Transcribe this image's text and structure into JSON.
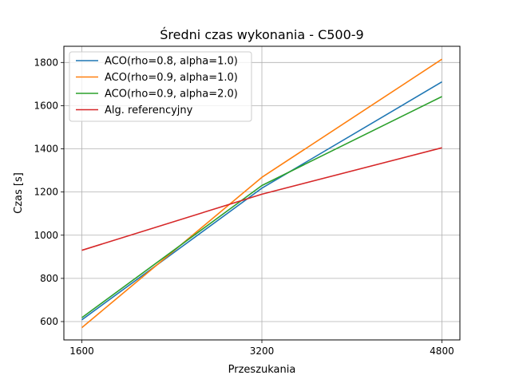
{
  "chart_data": {
    "type": "line",
    "title": "Średni czas wykonania - C500-9",
    "xlabel": "Przeszukania",
    "ylabel": "Czas [s]",
    "x": [
      1600,
      3200,
      4800
    ],
    "xticks": [
      "1600",
      "3200",
      "4800"
    ],
    "yticks": [
      "600",
      "800",
      "1000",
      "1200",
      "1400",
      "1600",
      "1800"
    ],
    "xlim": [
      1440,
      4960
    ],
    "ylim": [
      515,
      1875
    ],
    "grid": true,
    "legend_position": "upper-left",
    "series": [
      {
        "name": "ACO(rho=0.8, alpha=1.0)",
        "color": "#1f77b4",
        "values": [
          608,
          1218,
          1710
        ]
      },
      {
        "name": "ACO(rho=0.9, alpha=1.0)",
        "color": "#ff7f0e",
        "values": [
          572,
          1268,
          1815
        ]
      },
      {
        "name": "ACO(rho=0.9, alpha=2.0)",
        "color": "#2ca02c",
        "values": [
          618,
          1230,
          1642
        ]
      },
      {
        "name": "Alg. referencyjny",
        "color": "#d62728",
        "values": [
          930,
          1190,
          1405
        ]
      }
    ]
  }
}
